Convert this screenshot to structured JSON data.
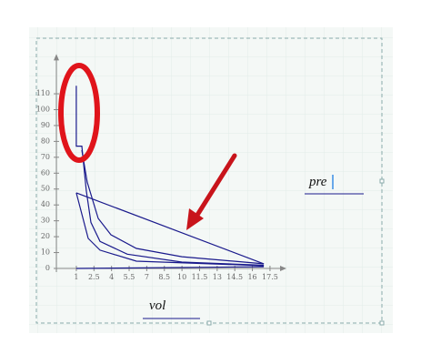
{
  "chart_data": {
    "type": "line",
    "x_label": "vol",
    "y_label": "pre",
    "xlim": [
      -0.7,
      18.9
    ],
    "ylim": [
      0,
      135
    ],
    "xticks": [
      1,
      2.5,
      4,
      5.5,
      7,
      8.5,
      10,
      11.5,
      13,
      14.5,
      16,
      17.5
    ],
    "yticks": [
      0,
      10,
      20,
      30,
      40,
      50,
      60,
      70,
      80,
      90,
      100,
      110
    ],
    "axis_color": "#888888",
    "series": [
      {
        "color": "#1a1a8c",
        "x": [
          1,
          1,
          1.47,
          1.85,
          2.24,
          3.02,
          5.34,
          9.99,
          16.97
        ],
        "values": [
          115,
          77,
          77,
          49,
          29,
          17,
          9,
          4,
          2
        ]
      },
      {
        "color": "#1a1a8c",
        "x": [
          1.47,
          1.93,
          2.86,
          3.95,
          6.12,
          9.99,
          16.97
        ],
        "values": [
          74.5,
          54.4,
          31.5,
          21.2,
          12.6,
          7.4,
          2.9
        ]
      },
      {
        "color": "#1a1a8c",
        "x": [
          1,
          2.01,
          3.02,
          6.12,
          16.97
        ],
        "values": [
          47.6,
          18.9,
          11.5,
          4.6,
          1.7
        ]
      },
      {
        "color": "#1a1a8c",
        "x": [
          1,
          16.97
        ],
        "values": [
          47.6,
          2.9
        ]
      },
      {
        "color": "#1a1a8c",
        "x": [
          1,
          16.97
        ],
        "values": [
          0,
          1.1
        ]
      }
    ]
  }
}
